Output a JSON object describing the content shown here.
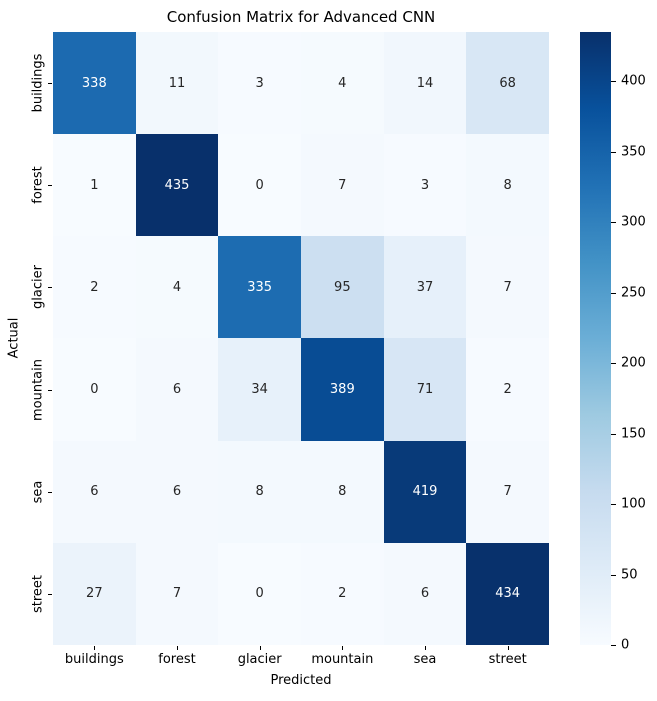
{
  "chart_data": {
    "type": "heatmap",
    "title": "Confusion Matrix for Advanced CNN",
    "xlabel": "Predicted",
    "ylabel": "Actual",
    "x_categories": [
      "buildings",
      "forest",
      "glacier",
      "mountain",
      "sea",
      "street"
    ],
    "y_categories": [
      "buildings",
      "forest",
      "glacier",
      "mountain",
      "sea",
      "street"
    ],
    "matrix": [
      [
        338,
        11,
        3,
        4,
        14,
        68
      ],
      [
        1,
        435,
        0,
        7,
        3,
        8
      ],
      [
        2,
        4,
        335,
        95,
        37,
        7
      ],
      [
        0,
        6,
        34,
        389,
        71,
        2
      ],
      [
        6,
        6,
        8,
        8,
        419,
        7
      ],
      [
        27,
        7,
        0,
        2,
        6,
        434
      ]
    ],
    "vmin": 0,
    "vmax": 435,
    "colormap_name": "Blues",
    "colormap_stops": [
      "#f7fbff",
      "#deebf7",
      "#c6dbef",
      "#9ecae1",
      "#6baed6",
      "#4292c6",
      "#2171b5",
      "#08519c",
      "#08306b"
    ],
    "colorbar_ticks": [
      0,
      50,
      100,
      150,
      200,
      250,
      300,
      350,
      400
    ],
    "colorbar_position": "right",
    "grid": false,
    "annotation_text_colors": {
      "on_dark": "#ffffff",
      "on_light": "#262626"
    },
    "axis_text_color": "#000000"
  }
}
